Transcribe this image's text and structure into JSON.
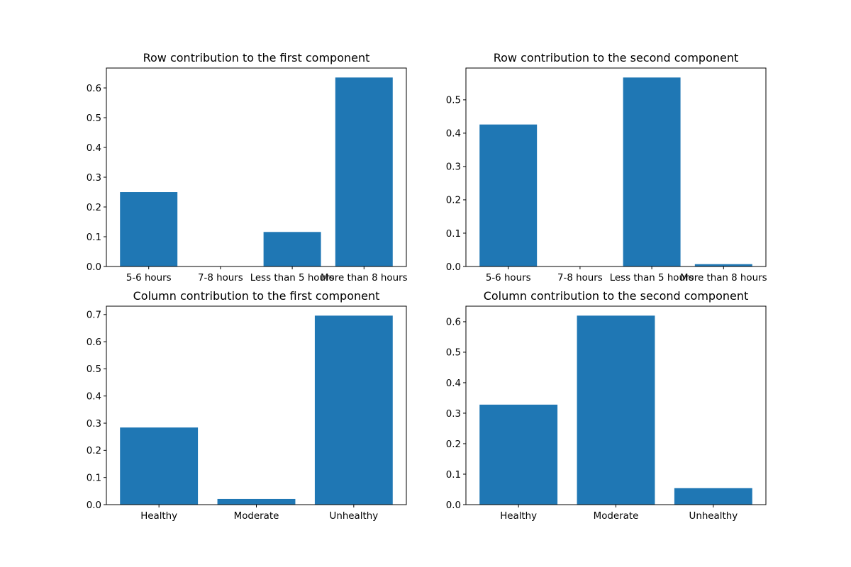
{
  "chart_data": [
    {
      "type": "bar",
      "title": "Row contribution to the first component",
      "categories": [
        "5-6 hours",
        "7-8 hours",
        "Less than 5 hours",
        "More than 8 hours"
      ],
      "values": [
        0.25,
        0.0005,
        0.116,
        0.635
      ],
      "ylim": [
        0,
        0.6668
      ],
      "yticks": [
        0.0,
        0.1,
        0.2,
        0.3,
        0.4,
        0.5,
        0.6
      ],
      "ytick_labels": [
        "0.0",
        "0.1",
        "0.2",
        "0.3",
        "0.4",
        "0.5",
        "0.6"
      ],
      "xlabel": "",
      "ylabel": "",
      "color": "#1f77b4",
      "grid": false,
      "legend": false
    },
    {
      "type": "bar",
      "title": "Row contribution to the second component",
      "categories": [
        "5-6 hours",
        "7-8 hours",
        "Less than 5 hours",
        "More than 8 hours"
      ],
      "values": [
        0.426,
        0.0005,
        0.567,
        0.007
      ],
      "ylim": [
        0,
        0.5954
      ],
      "yticks": [
        0.0,
        0.1,
        0.2,
        0.3,
        0.4,
        0.5
      ],
      "ytick_labels": [
        "0.0",
        "0.1",
        "0.2",
        "0.3",
        "0.4",
        "0.5"
      ],
      "xlabel": "",
      "ylabel": "",
      "color": "#1f77b4",
      "grid": false,
      "legend": false
    },
    {
      "type": "bar",
      "title": "Column contribution to the first component",
      "categories": [
        "Healthy",
        "Moderate",
        "Unhealthy"
      ],
      "values": [
        0.284,
        0.021,
        0.696
      ],
      "ylim": [
        0,
        0.7308
      ],
      "yticks": [
        0.0,
        0.1,
        0.2,
        0.3,
        0.4,
        0.5,
        0.6,
        0.7
      ],
      "ytick_labels": [
        "0.0",
        "0.1",
        "0.2",
        "0.3",
        "0.4",
        "0.5",
        "0.6",
        "0.7"
      ],
      "xlabel": "",
      "ylabel": "",
      "color": "#1f77b4",
      "grid": false,
      "legend": false
    },
    {
      "type": "bar",
      "title": "Column contribution to the second component",
      "categories": [
        "Healthy",
        "Moderate",
        "Unhealthy"
      ],
      "values": [
        0.328,
        0.62,
        0.054
      ],
      "ylim": [
        0,
        0.651
      ],
      "yticks": [
        0.0,
        0.1,
        0.2,
        0.3,
        0.4,
        0.5,
        0.6
      ],
      "ytick_labels": [
        "0.0",
        "0.1",
        "0.2",
        "0.3",
        "0.4",
        "0.5",
        "0.6"
      ],
      "xlabel": "",
      "ylabel": "",
      "color": "#1f77b4",
      "grid": false,
      "legend": false
    }
  ]
}
